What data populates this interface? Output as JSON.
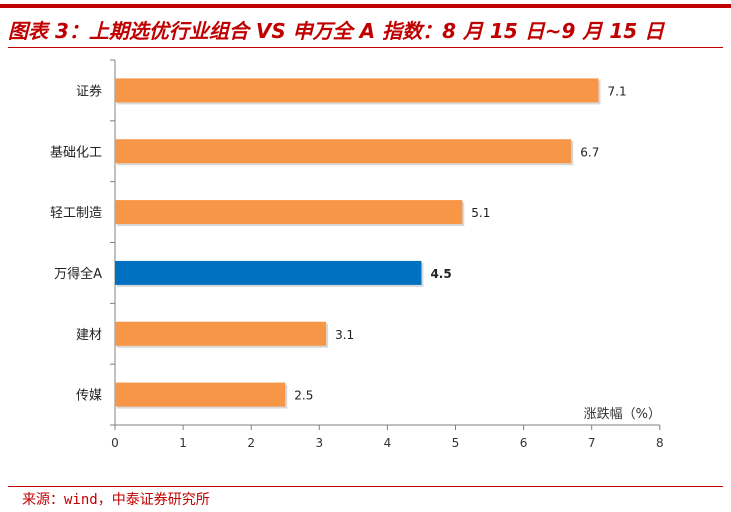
{
  "header": {
    "title": "图表 3：上期选优行业组合 VS 申万全 A 指数：8 月 15 日~9 月 15 日"
  },
  "footer": {
    "source": "来源：wind，中泰证券研究所"
  },
  "colors": {
    "accent": "#c00000",
    "bar_default": "#f79646",
    "bar_highlight": "#0070c0",
    "axis": "#808080"
  },
  "chart_data": {
    "type": "bar",
    "orientation": "horizontal",
    "categories": [
      "证券",
      "基础化工",
      "轻工制造",
      "万得全A",
      "建材",
      "传媒"
    ],
    "values": [
      7.1,
      6.7,
      5.1,
      4.5,
      3.1,
      2.5
    ],
    "value_labels": [
      "7.1",
      "6.7",
      "5.1",
      "4.5",
      "3.1",
      "2.5"
    ],
    "highlight_category": "万得全A",
    "xlabel": "涨跌幅（%）",
    "xlim": [
      0,
      8
    ],
    "xticks": [
      "0",
      "1",
      "2",
      "3",
      "4",
      "5",
      "6",
      "7",
      "8"
    ],
    "grid": false,
    "legend": "none"
  }
}
